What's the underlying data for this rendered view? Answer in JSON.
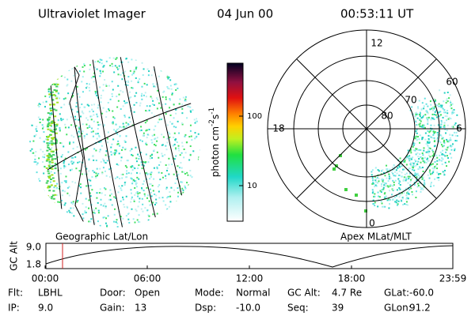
{
  "header": {
    "title": "Ultraviolet Imager",
    "date": "04 Jun 00",
    "time": "00:53:11 UT"
  },
  "left_panel": {
    "label": "Geographic Lat/Lon"
  },
  "colorbar": {
    "label_parts": [
      "photon cm",
      "-2",
      "s",
      "-1"
    ],
    "ticks": [
      "100",
      "10"
    ]
  },
  "polar_panel": {
    "label": "Apex MLat/MLT",
    "mlt_labels": [
      "12",
      "18",
      "6",
      "0"
    ],
    "lat_labels": [
      "60",
      "70",
      "80"
    ]
  },
  "altitude_plot": {
    "ylabel": "GC Alt",
    "yticks": [
      "9.0",
      "1.8"
    ],
    "xticks": [
      "00:00",
      "06:00",
      "12:00",
      "18:00",
      "23:59"
    ]
  },
  "footer": [
    [
      {
        "label": "Flt:",
        "value": "LBHL"
      },
      {
        "label": "Door:",
        "value": "Open"
      },
      {
        "label": "Mode:",
        "value": "Normal"
      },
      {
        "label": "GC Alt:",
        "value": "4.7 Re"
      },
      {
        "label": "GLat:",
        "value": "-60.0"
      }
    ],
    [
      {
        "label": "IP:",
        "value": "9.0"
      },
      {
        "label": "Gain:",
        "value": "13"
      },
      {
        "label": "Dsp:",
        "value": "-10.0"
      },
      {
        "label": "Seq:",
        "value": "39"
      },
      {
        "label": "GLon:",
        "value": "91.2"
      }
    ]
  ]
}
